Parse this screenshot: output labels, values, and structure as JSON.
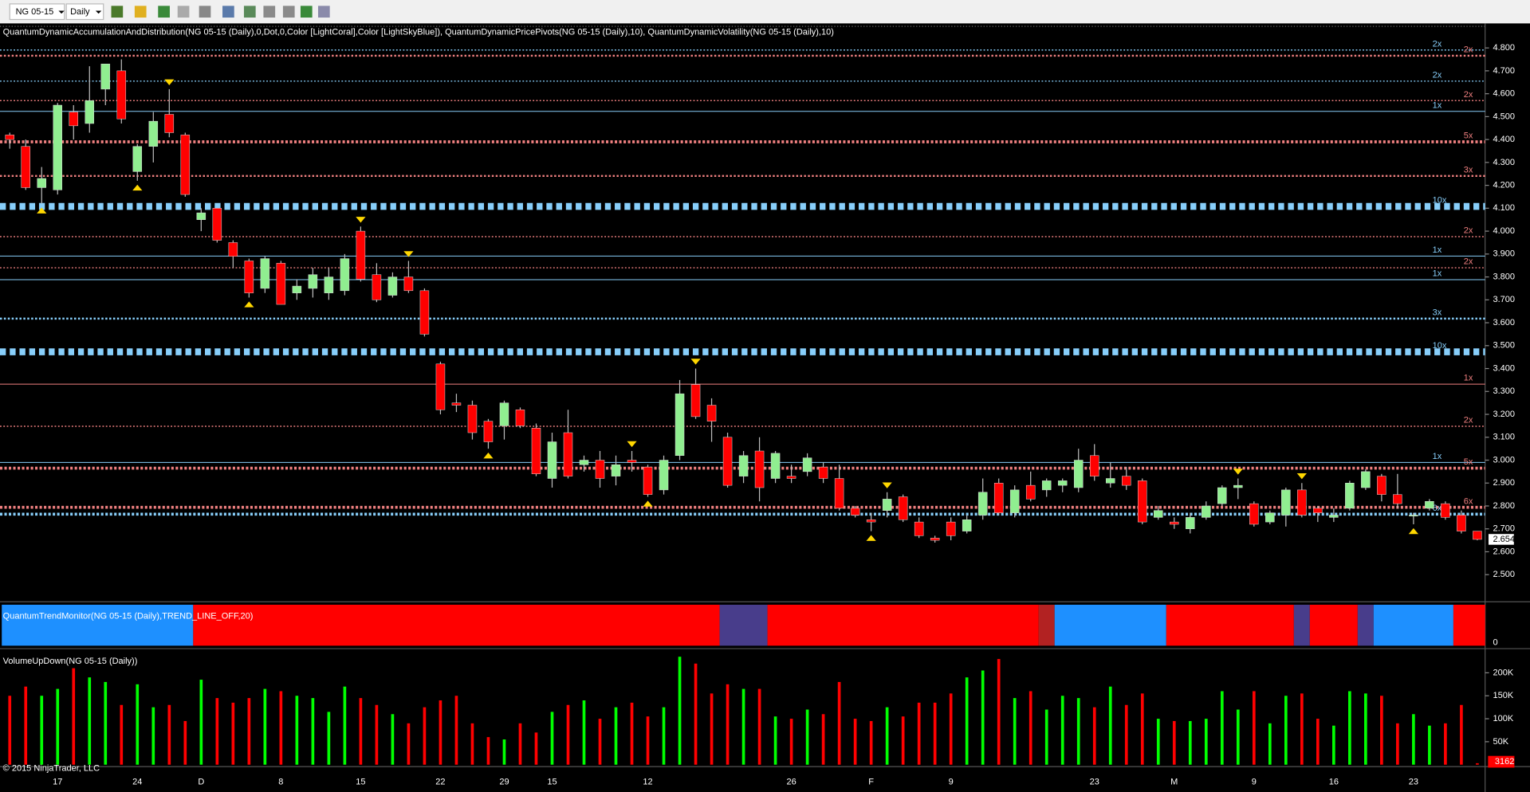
{
  "toolbar": {
    "symbol": "NG 05-15",
    "interval": "Daily"
  },
  "chart_data": [
    {
      "type": "candlestick",
      "title": "QuantumDynamicAccumulationAndDistribution(NG 05-15 (Daily),0,Dot,0,Color [LightCoral],Color [LightSkyBlue]), QuantumDynamicPricePivots(NG 05-15 (Daily),10), QuantumDynamicVolatility(NG 05-15 (Daily),10)",
      "categories": [
        null,
        null,
        null,
        "17",
        null,
        null,
        null,
        null,
        "24",
        null,
        null,
        null,
        "D",
        null,
        null,
        null,
        null,
        "8",
        null,
        null,
        null,
        null,
        "15",
        null,
        null,
        null,
        null,
        "22",
        null,
        null,
        null,
        "29",
        null,
        null,
        "15",
        null,
        null,
        null,
        null,
        null,
        "12",
        null,
        null,
        null,
        null,
        null,
        null,
        null,
        null,
        "26",
        null,
        null,
        null,
        null,
        "F",
        null,
        null,
        null,
        null,
        "9",
        null,
        null,
        null,
        null,
        null,
        null,
        null,
        null,
        "23",
        null,
        null,
        null,
        null,
        "M",
        null,
        null,
        null,
        null,
        "9",
        null,
        null,
        null,
        null,
        "16",
        null,
        null,
        null,
        null,
        "23",
        null,
        null,
        null,
        null
      ],
      "open": [
        4.42,
        4.37,
        4.19,
        4.18,
        4.52,
        4.47,
        4.62,
        4.7,
        4.26,
        4.37,
        4.51,
        4.42,
        4.05,
        4.1,
        3.95,
        3.87,
        3.75,
        3.86,
        3.73,
        3.75,
        3.73,
        3.74,
        4.0,
        3.81,
        3.72,
        3.8,
        3.74,
        3.42,
        3.25,
        3.24,
        3.17,
        3.15,
        3.22,
        3.14,
        2.92,
        3.12,
        2.98,
        3.0,
        2.93,
        3.0,
        2.97,
        2.87,
        3.02,
        3.33,
        3.24,
        3.1,
        2.93,
        3.04,
        2.92,
        2.93,
        2.95,
        2.97,
        2.92,
        2.79,
        2.74,
        2.78,
        2.84,
        2.73,
        2.66,
        2.73,
        2.69,
        2.76,
        2.9,
        2.77,
        2.89,
        2.87,
        2.89,
        2.88,
        3.02,
        2.9,
        2.93,
        2.91,
        2.75,
        2.73,
        2.7,
        2.75,
        2.81,
        2.88,
        2.81,
        2.73,
        2.76,
        2.87,
        2.79,
        2.75,
        2.79,
        2.88,
        2.93,
        2.85,
        2.76,
        2.79,
        2.81,
        2.76,
        2.69
      ],
      "high": [
        4.43,
        4.4,
        4.28,
        4.56,
        4.55,
        4.72,
        4.73,
        4.75,
        4.38,
        4.52,
        4.62,
        4.43,
        4.1,
        4.1,
        3.96,
        3.88,
        3.89,
        3.87,
        3.79,
        3.84,
        3.84,
        3.9,
        4.02,
        3.86,
        3.82,
        3.87,
        3.75,
        3.43,
        3.29,
        3.26,
        3.18,
        3.26,
        3.23,
        3.16,
        3.12,
        3.22,
        3.02,
        3.04,
        3.02,
        3.04,
        2.98,
        3.02,
        3.35,
        3.4,
        3.27,
        3.12,
        3.04,
        3.1,
        3.04,
        2.98,
        3.03,
        2.99,
        2.98,
        2.8,
        2.77,
        2.86,
        2.85,
        2.75,
        2.67,
        2.75,
        2.76,
        2.92,
        2.92,
        2.89,
        2.95,
        2.92,
        2.92,
        3.05,
        3.07,
        2.99,
        2.97,
        2.92,
        2.8,
        2.75,
        2.77,
        2.82,
        2.89,
        2.92,
        2.82,
        2.78,
        2.88,
        2.9,
        2.8,
        2.79,
        2.91,
        2.96,
        2.94,
        2.94,
        2.77,
        2.83,
        2.82,
        2.78,
        2.69
      ],
      "low": [
        4.36,
        4.18,
        4.12,
        4.16,
        4.4,
        4.43,
        4.55,
        4.47,
        4.22,
        4.3,
        4.41,
        4.15,
        4.0,
        3.95,
        3.84,
        3.71,
        3.73,
        3.68,
        3.7,
        3.71,
        3.7,
        3.72,
        3.78,
        3.69,
        3.71,
        3.73,
        3.54,
        3.2,
        3.21,
        3.09,
        3.05,
        3.09,
        3.14,
        2.93,
        2.88,
        2.92,
        2.95,
        2.88,
        2.89,
        2.95,
        2.84,
        2.85,
        3.0,
        3.18,
        3.08,
        2.88,
        2.9,
        2.82,
        2.9,
        2.9,
        2.93,
        2.9,
        2.78,
        2.75,
        2.69,
        2.75,
        2.73,
        2.66,
        2.64,
        2.65,
        2.68,
        2.74,
        2.76,
        2.75,
        2.82,
        2.84,
        2.86,
        2.86,
        2.91,
        2.88,
        2.87,
        2.72,
        2.74,
        2.7,
        2.68,
        2.74,
        2.8,
        2.83,
        2.71,
        2.72,
        2.71,
        2.75,
        2.73,
        2.73,
        2.78,
        2.87,
        2.82,
        2.79,
        2.72,
        2.78,
        2.74,
        2.68,
        2.65
      ],
      "close": [
        4.4,
        4.19,
        4.23,
        4.55,
        4.46,
        4.57,
        4.73,
        4.49,
        4.37,
        4.48,
        4.43,
        4.16,
        4.08,
        3.96,
        3.89,
        3.73,
        3.88,
        3.68,
        3.76,
        3.81,
        3.8,
        3.88,
        3.79,
        3.7,
        3.8,
        3.74,
        3.55,
        3.22,
        3.24,
        3.12,
        3.08,
        3.25,
        3.15,
        2.94,
        3.08,
        2.93,
        3.0,
        2.92,
        2.98,
        2.99,
        2.85,
        3.0,
        3.29,
        3.19,
        3.17,
        2.89,
        3.02,
        2.88,
        3.03,
        2.92,
        3.01,
        2.92,
        2.79,
        2.76,
        2.73,
        2.83,
        2.74,
        2.67,
        2.65,
        2.67,
        2.74,
        2.86,
        2.77,
        2.87,
        2.83,
        2.91,
        2.91,
        3.0,
        2.93,
        2.92,
        2.89,
        2.73,
        2.78,
        2.72,
        2.75,
        2.8,
        2.88,
        2.89,
        2.72,
        2.77,
        2.87,
        2.76,
        2.77,
        2.76,
        2.9,
        2.95,
        2.85,
        2.81,
        2.76,
        2.82,
        2.75,
        2.69,
        2.654
      ],
      "up_color": "#90ee90",
      "down_color": "#ff0000",
      "ylim": [
        2.39,
        4.89
      ],
      "yticks": [
        {
          "value": 4.8,
          "label": "4.800"
        },
        {
          "value": 4.7,
          "label": "4.700"
        },
        {
          "value": 4.6,
          "label": "4.600"
        },
        {
          "value": 4.5,
          "label": "4.500"
        },
        {
          "value": 4.4,
          "label": "4.400"
        },
        {
          "value": 4.3,
          "label": "4.300"
        },
        {
          "value": 4.2,
          "label": "4.200"
        },
        {
          "value": 4.1,
          "label": "4.100"
        },
        {
          "value": 4.0,
          "label": "4.000"
        },
        {
          "value": 3.9,
          "label": "3.900"
        },
        {
          "value": 3.8,
          "label": "3.800"
        },
        {
          "value": 3.7,
          "label": "3.700"
        },
        {
          "value": 3.6,
          "label": "3.600"
        },
        {
          "value": 3.5,
          "label": "3.500"
        },
        {
          "value": 3.4,
          "label": "3.400"
        },
        {
          "value": 3.3,
          "label": "3.300"
        },
        {
          "value": 3.2,
          "label": "3.200"
        },
        {
          "value": 3.1,
          "label": "3.100"
        },
        {
          "value": 3.0,
          "label": "3.000"
        },
        {
          "value": 2.9,
          "label": "2.900"
        },
        {
          "value": 2.8,
          "label": "2.800"
        },
        {
          "value": 2.7,
          "label": "2.700"
        },
        {
          "value": 2.6,
          "label": "2.600"
        },
        {
          "value": 2.5,
          "label": "2.500"
        }
      ],
      "levels": [
        {
          "value": 4.791,
          "label": "2x",
          "color": "#87cefa",
          "style": "dotted"
        },
        {
          "value": 4.766,
          "label": "2x",
          "color": "#f08080",
          "style": "heavy"
        },
        {
          "value": 4.655,
          "label": "2x",
          "color": "#87cefa",
          "style": "dotted"
        },
        {
          "value": 4.57,
          "label": "2x",
          "color": "#f08080",
          "style": "dotted"
        },
        {
          "value": 4.523,
          "label": "1x",
          "color": "#87cefa",
          "style": "thin"
        },
        {
          "value": 4.39,
          "label": "5x",
          "color": "#f08080",
          "style": "bold"
        },
        {
          "value": 4.241,
          "label": "3x",
          "color": "#f08080",
          "style": "heavy"
        },
        {
          "value": 4.108,
          "label": "10x",
          "color": "#87cefa",
          "style": "blocks"
        },
        {
          "value": 3.976,
          "label": "2x",
          "color": "#f08080",
          "style": "dotted"
        },
        {
          "value": 3.891,
          "label": "1x",
          "color": "#87cefa",
          "style": "thin"
        },
        {
          "value": 3.84,
          "label": "2x",
          "color": "#f08080",
          "style": "dotted"
        },
        {
          "value": 3.788,
          "label": "1x",
          "color": "#87cefa",
          "style": "thin"
        },
        {
          "value": 3.618,
          "label": "3x",
          "color": "#87cefa",
          "style": "heavy"
        },
        {
          "value": 3.473,
          "label": "10x",
          "color": "#87cefa",
          "style": "blocks"
        },
        {
          "value": 3.332,
          "label": "1x",
          "color": "#f08080",
          "style": "thin"
        },
        {
          "value": 3.148,
          "label": "2x",
          "color": "#f08080",
          "style": "dotted"
        },
        {
          "value": 2.99,
          "label": "1x",
          "color": "#87cefa",
          "style": "thin"
        },
        {
          "value": 2.965,
          "label": "5x",
          "color": "#f08080",
          "style": "bold"
        },
        {
          "value": 2.794,
          "label": "6x",
          "color": "#f08080",
          "style": "bold"
        },
        {
          "value": 2.764,
          "label": "6x",
          "color": "#87cefa",
          "style": "bold"
        }
      ],
      "signals_below": [
        2,
        8,
        15,
        30,
        40,
        54,
        88
      ],
      "signals_above": [
        10,
        22,
        25,
        39,
        43,
        55,
        77,
        81
      ],
      "signal_color": "#ffd700"
    },
    {
      "type": "band",
      "title": "QuantumTrendMonitor(NG 05-15 (Daily),TREND_LINE_OFF,20)",
      "segments": [
        {
          "start": 0,
          "end": 11,
          "color": "#1e90ff"
        },
        {
          "start": 12,
          "end": 44,
          "color": "#ff0000"
        },
        {
          "start": 45,
          "end": 47,
          "color": "#483d8b"
        },
        {
          "start": 48,
          "end": 64,
          "color": "#ff0000"
        },
        {
          "start": 65,
          "end": 65,
          "color": "#b22222"
        },
        {
          "start": 66,
          "end": 72,
          "color": "#1e90ff"
        },
        {
          "start": 73,
          "end": 80,
          "color": "#ff0000"
        },
        {
          "start": 81,
          "end": 81,
          "color": "#483d8b"
        },
        {
          "start": 82,
          "end": 84,
          "color": "#ff0000"
        },
        {
          "start": 85,
          "end": 85,
          "color": "#483d8b"
        },
        {
          "start": 86,
          "end": 90,
          "color": "#1e90ff"
        },
        {
          "start": 91,
          "end": 92,
          "color": "#ff0000"
        }
      ],
      "yticks": [
        0
      ]
    },
    {
      "type": "volume",
      "title": "VolumeUpDown(NG 05-15 (Daily))",
      "values": [
        150000,
        170000,
        150000,
        165000,
        210000,
        190000,
        180000,
        130000,
        175000,
        125000,
        130000,
        95000,
        185000,
        145000,
        135000,
        145000,
        165000,
        160000,
        150000,
        145000,
        115000,
        170000,
        145000,
        130000,
        110000,
        90000,
        125000,
        140000,
        150000,
        90000,
        60000,
        55000,
        90000,
        70000,
        115000,
        130000,
        140000,
        100000,
        125000,
        135000,
        105000,
        125000,
        235000,
        220000,
        155000,
        175000,
        165000,
        165000,
        105000,
        100000,
        120000,
        110000,
        180000,
        100000,
        95000,
        125000,
        105000,
        135000,
        135000,
        155000,
        190000,
        205000,
        230000,
        145000,
        160000,
        120000,
        150000,
        145000,
        125000,
        170000,
        130000,
        155000,
        100000,
        95000,
        95000,
        100000,
        160000,
        120000,
        160000,
        90000,
        150000,
        155000,
        100000,
        85000,
        160000,
        155000,
        150000,
        90000,
        110000,
        85000,
        90000,
        130000,
        3162
      ],
      "up_color": "#00ff00",
      "down_color": "#ff0000",
      "ylim": [
        0,
        242000
      ],
      "yticks": [
        {
          "value": 200000,
          "label": "200K"
        },
        {
          "value": 150000,
          "label": "150K"
        },
        {
          "value": 100000,
          "label": "100K"
        },
        {
          "value": 50000,
          "label": "50K"
        }
      ]
    }
  ],
  "footer": "© 2015 NinjaTrader, LLC"
}
